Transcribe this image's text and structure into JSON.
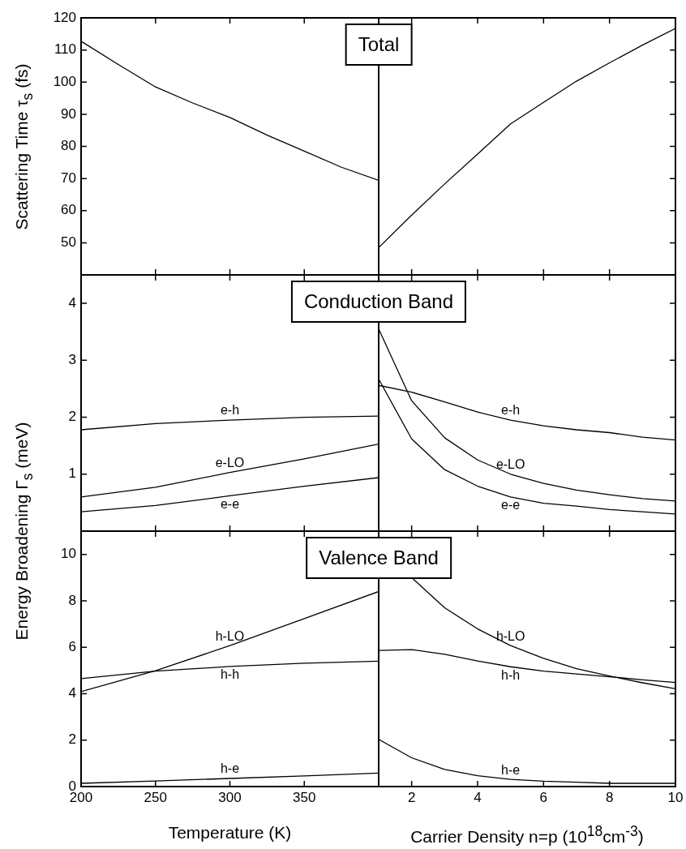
{
  "chart_data": [
    {
      "type": "line",
      "title": "Total",
      "ylabel": "Scattering Time τ$_{s}$ (fs)",
      "x": [
        200,
        225,
        250,
        275,
        300,
        325,
        350,
        375,
        400
      ],
      "xlim": [
        200,
        400
      ],
      "xticks": [
        200,
        250,
        300,
        350
      ],
      "ylim": [
        40,
        120
      ],
      "yticks": [
        50,
        60,
        70,
        80,
        90,
        100,
        110,
        120
      ],
      "tick_labels": "y",
      "legend": false,
      "marker": "none",
      "line_style": "solid",
      "series": [
        {
          "color": "#000000",
          "values": [
            112.7,
            105.5,
            98.5,
            93.5,
            89,
            83.5,
            78.5,
            73.5,
            69.4
          ]
        }
      ]
    },
    {
      "type": "line",
      "x": [
        1,
        2,
        3,
        4,
        5,
        6,
        7,
        8,
        9,
        10
      ],
      "xlim": [
        1,
        10
      ],
      "xticks": [
        2,
        4,
        6,
        8,
        10
      ],
      "ylim": [
        40,
        120
      ],
      "yticks": [
        50,
        60,
        70,
        80,
        90,
        100,
        110,
        120
      ],
      "tick_labels": false,
      "legend": false,
      "marker": "none",
      "line_style": "solid",
      "series": [
        {
          "color": "#000000",
          "values": [
            48.5,
            58.6,
            68.3,
            77.6,
            87,
            93.7,
            100.3,
            106,
            111.5,
            116.7
          ]
        }
      ]
    },
    {
      "type": "line",
      "title": "Conduction Band",
      "ylabel": "Energy Broadening Γ$_{s}$ (meV)",
      "x": [
        200,
        250,
        300,
        350,
        400
      ],
      "xlim": [
        200,
        400
      ],
      "xticks": [
        200,
        250,
        300,
        350
      ],
      "ylim": [
        0,
        4.5
      ],
      "yticks": [
        1,
        2,
        3,
        4
      ],
      "tick_labels": "y",
      "legend": false,
      "marker": "none",
      "line_style": "solid",
      "series": [
        {
          "name": "e-h",
          "color": "#000000",
          "values": [
            1.78,
            1.89,
            1.95,
            2.0,
            2.02
          ]
        },
        {
          "name": "e-LO",
          "color": "#000000",
          "values": [
            0.6,
            0.77,
            1.03,
            1.27,
            1.53
          ]
        },
        {
          "name": "e-e",
          "color": "#000000",
          "values": [
            0.34,
            0.45,
            0.62,
            0.79,
            0.94
          ]
        }
      ]
    },
    {
      "type": "line",
      "x": [
        1,
        2,
        3,
        4,
        5,
        6,
        7,
        8,
        9,
        10
      ],
      "xlim": [
        1,
        10
      ],
      "xticks": [
        2,
        4,
        6,
        8,
        10
      ],
      "ylim": [
        0,
        4.5
      ],
      "yticks": [
        1,
        2,
        3,
        4
      ],
      "tick_labels": false,
      "legend": false,
      "marker": "none",
      "line_style": "solid",
      "series": [
        {
          "name": "e-h",
          "color": "#000000",
          "values": [
            2.56,
            2.44,
            2.27,
            2.09,
            1.95,
            1.85,
            1.78,
            1.73,
            1.65,
            1.6
          ]
        },
        {
          "name": "e-LO",
          "color": "#000000",
          "values": [
            3.55,
            2.29,
            1.64,
            1.25,
            1.0,
            0.84,
            0.72,
            0.64,
            0.57,
            0.53
          ]
        },
        {
          "name": "e-e",
          "color": "#000000",
          "values": [
            2.67,
            1.62,
            1.08,
            0.79,
            0.6,
            0.49,
            0.44,
            0.38,
            0.34,
            0.3
          ]
        }
      ]
    },
    {
      "type": "line",
      "title": "Valence Band",
      "xlabel": "Temperature (K)",
      "x": [
        200,
        250,
        300,
        350,
        400
      ],
      "xlim": [
        200,
        400
      ],
      "xticks": [
        200,
        250,
        300,
        350
      ],
      "ylim": [
        0,
        11
      ],
      "yticks": [
        0,
        2,
        4,
        6,
        8,
        10
      ],
      "legend": false,
      "marker": "none",
      "line_style": "solid",
      "series": [
        {
          "name": "h-LO",
          "color": "#000000",
          "values": [
            4.09,
            4.99,
            6.07,
            7.23,
            8.4
          ]
        },
        {
          "name": "h-h",
          "color": "#000000",
          "values": [
            4.65,
            4.97,
            5.17,
            5.31,
            5.4
          ]
        },
        {
          "name": "h-e",
          "color": "#000000",
          "values": [
            0.14,
            0.24,
            0.35,
            0.46,
            0.58
          ]
        }
      ]
    },
    {
      "type": "line",
      "xlabel": "Carrier Density n=p (10$^{18}$cm$^{-3}$)",
      "x": [
        1,
        2,
        3,
        4,
        5,
        6,
        7,
        8,
        9,
        10
      ],
      "xlim": [
        1,
        10
      ],
      "xticks": [
        2,
        4,
        6,
        8,
        10
      ],
      "ylim": [
        0,
        11
      ],
      "yticks": [
        0,
        2,
        4,
        6,
        8,
        10
      ],
      "tick_labels": "x",
      "legend": false,
      "marker": "none",
      "line_style": "solid",
      "series": [
        {
          "name": "h-LO",
          "color": "#000000",
          "values": [
            null,
            9.0,
            7.7,
            6.79,
            6.07,
            5.52,
            5.08,
            4.76,
            4.47,
            4.21
          ]
        },
        {
          "name": "h-h",
          "color": "#000000",
          "values": [
            5.86,
            5.9,
            5.7,
            5.41,
            5.16,
            4.97,
            4.85,
            4.73,
            4.6,
            4.48
          ]
        },
        {
          "name": "h-e",
          "color": "#000000",
          "values": [
            2.03,
            1.24,
            0.74,
            0.47,
            0.31,
            0.23,
            0.19,
            0.14,
            0.14,
            0.14
          ]
        }
      ]
    }
  ]
}
